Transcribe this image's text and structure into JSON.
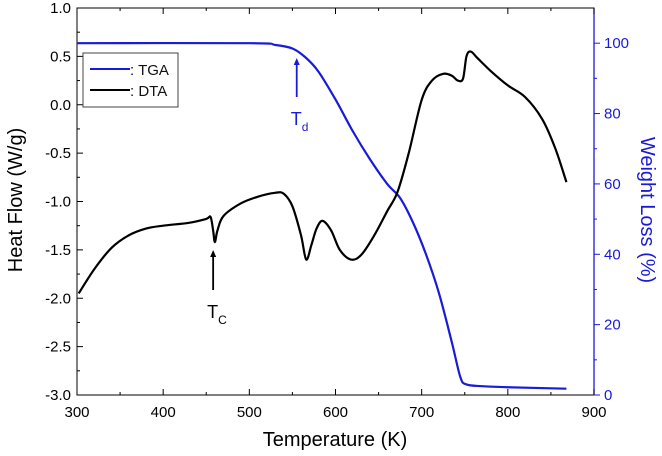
{
  "chart_data": {
    "type": "line",
    "xlabel": "Temperature (K)",
    "ylabel": "Heat Flow (W/g)",
    "y2label": "Weight Loss (%)",
    "xlim": [
      300,
      900
    ],
    "ylim": [
      -3.0,
      1.0
    ],
    "y2lim": [
      0,
      110
    ],
    "xticks": [
      "300",
      "400",
      "500",
      "600",
      "700",
      "800",
      "900"
    ],
    "yticks": [
      "1.0",
      "0.5",
      "0.0",
      "-0.5",
      "-1.0",
      "-1.5",
      "-2.0",
      "-2.5",
      "-3.0"
    ],
    "y2ticks": [
      "0",
      "20",
      "40",
      "60",
      "80",
      "100"
    ],
    "legend_position": "top-left",
    "colors": {
      "tga": "#1a1adb",
      "dta": "#000000"
    },
    "series": [
      {
        "name": ": TGA",
        "axis": "right",
        "x": [
          300,
          500,
          530,
          550,
          565,
          580,
          600,
          620,
          640,
          660,
          675,
          690,
          705,
          720,
          735,
          745,
          752,
          770,
          800,
          868
        ],
        "y": [
          100,
          100,
          99.5,
          98.5,
          96,
          92,
          84,
          75,
          67,
          60,
          56,
          49,
          40,
          29,
          15,
          5,
          3,
          2.5,
          2.2,
          1.8
        ]
      },
      {
        "name": ": DTA",
        "axis": "left",
        "x": [
          302,
          320,
          340,
          360,
          380,
          400,
          430,
          450,
          455,
          458,
          460,
          463,
          470,
          490,
          510,
          530,
          540,
          550,
          560,
          566,
          572,
          578,
          585,
          595,
          605,
          618,
          630,
          645,
          660,
          672,
          685,
          700,
          712,
          725,
          735,
          742,
          748,
          752,
          757,
          765,
          780,
          800,
          820,
          840,
          855,
          868
        ],
        "y": [
          -1.95,
          -1.7,
          -1.48,
          -1.35,
          -1.28,
          -1.25,
          -1.22,
          -1.18,
          -1.16,
          -1.3,
          -1.42,
          -1.3,
          -1.15,
          -1.02,
          -0.95,
          -0.91,
          -0.92,
          -1.05,
          -1.35,
          -1.6,
          -1.45,
          -1.28,
          -1.2,
          -1.3,
          -1.5,
          -1.6,
          -1.55,
          -1.35,
          -1.1,
          -0.9,
          -0.5,
          0.05,
          0.25,
          0.32,
          0.3,
          0.25,
          0.27,
          0.5,
          0.55,
          0.48,
          0.35,
          0.2,
          0.08,
          -0.15,
          -0.45,
          -0.8
        ]
      }
    ],
    "annotations": [
      {
        "label": "T",
        "sub": "d",
        "x": 555,
        "color": "#1a1adb"
      },
      {
        "label": "T",
        "sub": "C",
        "x": 458,
        "color": "#000000"
      }
    ]
  }
}
